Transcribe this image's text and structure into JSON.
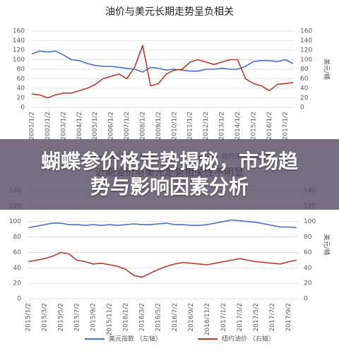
{
  "overlay_title": "蝴蝶参价格走势揭秘，市场趋势与影响因素分析",
  "chart_data": [
    {
      "type": "line",
      "title": "油价与美元长期走势呈负相关",
      "categories": [
        "2001/1/2",
        null,
        "2002/1/2",
        null,
        "2003/1/2",
        null,
        "2004/1/2",
        null,
        "2005/1/2",
        null,
        "2006/1/2",
        null,
        "2007/1/2",
        null,
        "2008/1/2",
        null,
        "2009/1/2",
        null,
        "2010/1/2",
        null,
        "2011/1/2",
        null,
        "2012/1/2",
        null,
        "2013/1/2",
        null,
        "2014/1/2",
        null,
        "2015/1/2",
        null,
        "2016/1/2",
        null,
        "2017/1/2",
        null
      ],
      "series": [
        {
          "name": "美元指数 （左轴）",
          "color": "#4472c4",
          "values": [
            112,
            118,
            116,
            118,
            110,
            100,
            98,
            92,
            88,
            86,
            86,
            84,
            82,
            80,
            74,
            84,
            82,
            78,
            80,
            78,
            76,
            76,
            80,
            80,
            82,
            80,
            80,
            86,
            96,
            98,
            98,
            96,
            100,
            92
          ]
        },
        {
          "name": "纽约油价 （右轴）",
          "color": "#c0392b",
          "axis": "y2",
          "values": [
            28,
            26,
            20,
            26,
            30,
            30,
            35,
            40,
            48,
            60,
            65,
            70,
            60,
            85,
            130,
            45,
            50,
            70,
            78,
            80,
            95,
            100,
            95,
            90,
            95,
            100,
            100,
            60,
            50,
            45,
            35,
            48,
            50,
            52
          ]
        }
      ],
      "ylim": [
        0,
        160
      ],
      "yticks": [
        0,
        20,
        40,
        60,
        80,
        100,
        120,
        140,
        160
      ],
      "y2lim": [
        0,
        160
      ],
      "y2ticks": [
        0,
        20,
        40,
        60,
        80,
        100,
        120,
        140,
        160
      ],
      "y2label": "美元/桶",
      "grid": true
    },
    {
      "type": "line",
      "title": "近期油价与美元走势相关性不明显",
      "categories": [
        "2015/1/2",
        null,
        "2015/3/2",
        null,
        "2015/5/2",
        null,
        "2015/7/2",
        null,
        "2015/9/2",
        null,
        "2015/11/2",
        null,
        "2016/1/2",
        null,
        "2016/3/2",
        null,
        "2016/5/2",
        null,
        "2016/7/2",
        null,
        "2016/9/2",
        null,
        "2016/11/2",
        null,
        "2017/1/2",
        null,
        "2017/3/2",
        null,
        "2017/5/2",
        null,
        "2017/7/2",
        null,
        "2017/9/2",
        null
      ],
      "series": [
        {
          "name": "美元指数 （左轴）",
          "color": "#4472c4",
          "values": [
            92,
            94,
            96,
            98,
            98,
            96,
            96,
            95,
            96,
            95,
            96,
            95,
            96,
            97,
            96,
            96,
            97,
            98,
            96,
            96,
            95,
            95,
            96,
            98,
            100,
            102,
            101,
            100,
            99,
            97,
            95,
            93,
            93,
            92
          ]
        },
        {
          "name": "纽约油价 （右轴）",
          "color": "#c0392b",
          "axis": "y2",
          "values": [
            48,
            50,
            52,
            55,
            60,
            58,
            50,
            48,
            45,
            46,
            44,
            42,
            38,
            30,
            28,
            33,
            38,
            42,
            45,
            47,
            46,
            45,
            44,
            46,
            48,
            50,
            52,
            50,
            48,
            47,
            46,
            45,
            48,
            50
          ]
        }
      ],
      "ylim": [
        0,
        140
      ],
      "yticks": [
        0,
        20,
        40,
        60,
        80,
        100,
        120,
        140
      ],
      "y2lim": [
        0,
        140
      ],
      "y2ticks": [
        0,
        20,
        40,
        60,
        80,
        100,
        120,
        140
      ],
      "y2label": "美元/桶",
      "grid": true,
      "legend": "bottom"
    }
  ]
}
